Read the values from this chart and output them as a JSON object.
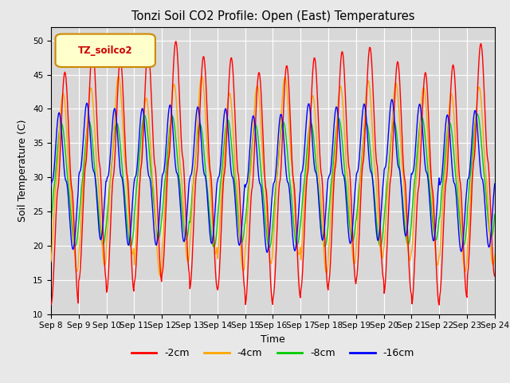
{
  "title": "Tonzi Soil CO2 Profile: Open (East) Temperatures",
  "xlabel": "Time",
  "ylabel": "Soil Temperature (C)",
  "ylim": [
    10,
    52
  ],
  "yticks": [
    10,
    15,
    20,
    25,
    30,
    35,
    40,
    45,
    50
  ],
  "legend_label": "TZ_soilco2",
  "series_labels": [
    "-2cm",
    "-4cm",
    "-8cm",
    "-16cm"
  ],
  "series_colors": [
    "#ff0000",
    "#ffa500",
    "#00cc00",
    "#0000ff"
  ],
  "background_color": "#d8d8d8",
  "fig_facecolor": "#e8e8e8",
  "n_days": 16,
  "start_day": 8,
  "ppd": 48
}
